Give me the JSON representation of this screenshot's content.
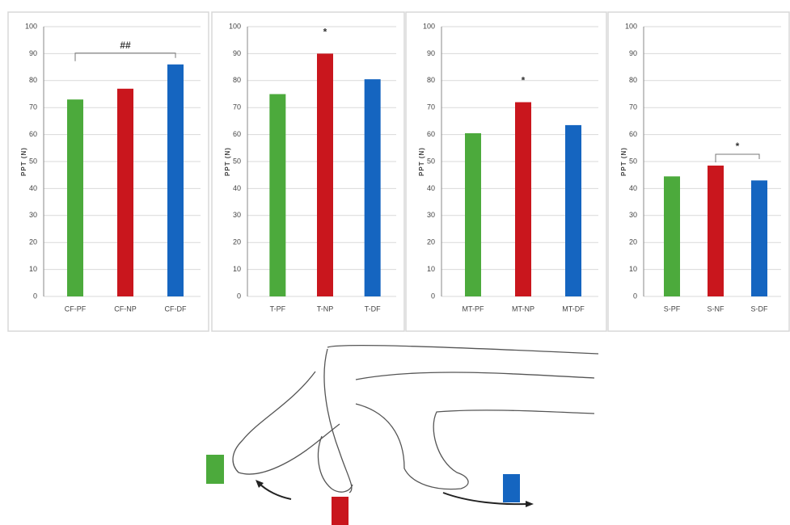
{
  "chart_data": [
    {
      "type": "bar",
      "y_label": "PPT (N)",
      "categories": [
        "CF-PF",
        "CF-NP",
        "CF-DF"
      ],
      "values": [
        73,
        77,
        86
      ],
      "colors": [
        "#4caa3c",
        "#c9161d",
        "#1565c0"
      ],
      "ylim": [
        0,
        100
      ],
      "yticks": [
        0,
        10,
        20,
        30,
        40,
        50,
        60,
        70,
        80,
        90,
        100
      ],
      "grid": true,
      "annotations": [
        {
          "text": "##",
          "between": [
            "CF-PF",
            "CF-DF"
          ]
        }
      ]
    },
    {
      "type": "bar",
      "y_label": "PPT (N)",
      "categories": [
        "T-PF",
        "T-NP",
        "T-DF"
      ],
      "values": [
        75,
        90,
        80.5
      ],
      "colors": [
        "#4caa3c",
        "#c9161d",
        "#1565c0"
      ],
      "ylim": [
        0,
        100
      ],
      "yticks": [
        0,
        10,
        20,
        30,
        40,
        50,
        60,
        70,
        80,
        90,
        100
      ],
      "grid": true,
      "annotations": [
        {
          "text": "*",
          "between": [
            "T-NP"
          ]
        }
      ]
    },
    {
      "type": "bar",
      "y_label": "PPT (N)",
      "categories": [
        "MT-PF",
        "MT-NP",
        "MT-DF"
      ],
      "values": [
        60.5,
        72,
        63.5
      ],
      "colors": [
        "#4caa3c",
        "#c9161d",
        "#1565c0"
      ],
      "ylim": [
        0,
        100
      ],
      "yticks": [
        0,
        10,
        20,
        30,
        40,
        50,
        60,
        70,
        80,
        90,
        100
      ],
      "grid": true,
      "annotations": [
        {
          "text": "*",
          "between": [
            "MT-NP"
          ]
        }
      ]
    },
    {
      "type": "bar",
      "y_label": "PPT (N)",
      "categories": [
        "S-PF",
        "S-NF",
        "S-DF"
      ],
      "values": [
        44.5,
        48.5,
        43
      ],
      "colors": [
        "#4caa3c",
        "#c9161d",
        "#1565c0"
      ],
      "ylim": [
        0,
        100
      ],
      "yticks": [
        0,
        10,
        20,
        30,
        40,
        50,
        60,
        70,
        80,
        90,
        100
      ],
      "grid": true,
      "annotations": [
        {
          "text": "*",
          "between": [
            "S-NF",
            "S-DF"
          ]
        }
      ]
    }
  ]
}
